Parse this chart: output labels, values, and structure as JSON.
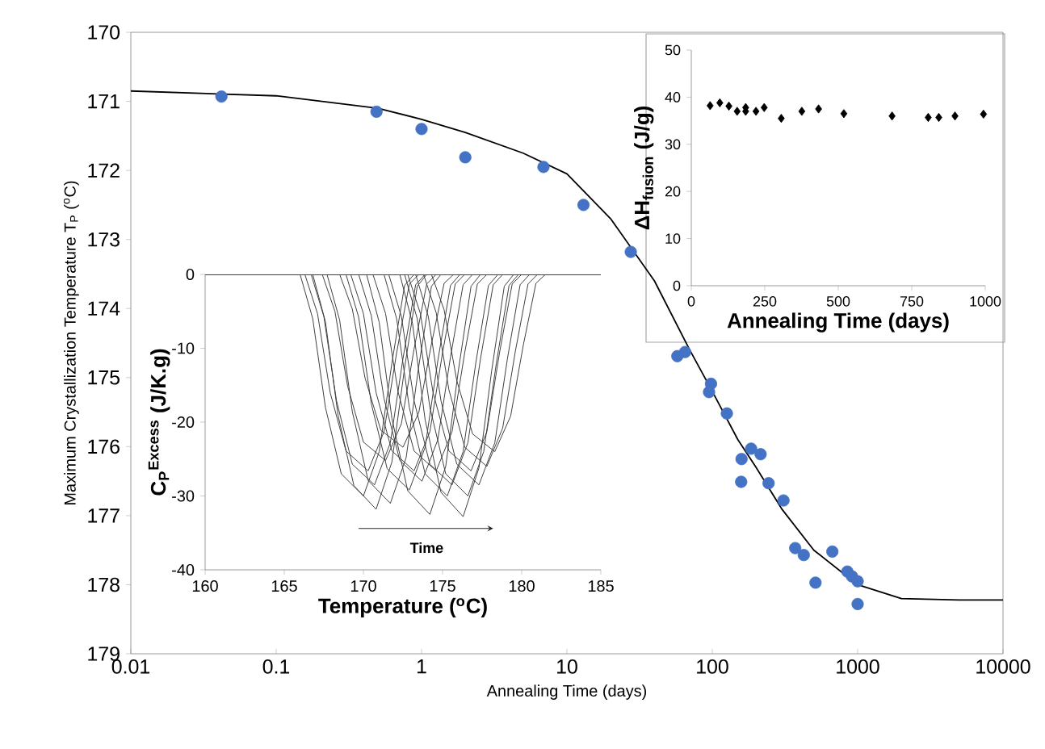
{
  "chart_data": [
    {
      "type": "scatter",
      "xlabel": "Annealing Time (days)",
      "ylabel": "Maximum Crystallization Temperature T$_{P}$ ($^{o}$C)",
      "log": "x",
      "xlim": [
        0.01,
        10000
      ],
      "ylim": [
        179,
        170
      ],
      "xticks": [
        0.01,
        0.1,
        1,
        10,
        100,
        1000,
        10000
      ],
      "yticks": [
        170,
        171,
        172,
        173,
        174,
        175,
        176,
        177,
        178,
        179
      ],
      "series": [
        {
          "type": "scatter",
          "marker": "circle",
          "color": "#4472c4",
          "x": [
            0.042,
            0.49,
            1.0,
            2.0,
            6.9,
            13,
            27.5,
            57.5,
            65,
            98,
            95,
            126,
            159,
            185,
            215,
            158,
            244,
            309,
            372,
            426,
            670,
            513,
            850,
            915,
            1000,
            1000
          ],
          "values": [
            170.93,
            171.15,
            171.4,
            171.81,
            171.95,
            172.5,
            173.18,
            174.69,
            174.63,
            175.09,
            175.21,
            175.52,
            176.18,
            176.03,
            176.11,
            176.51,
            176.53,
            176.78,
            177.47,
            177.57,
            177.52,
            177.97,
            177.81,
            177.88,
            177.95,
            178.28
          ]
        },
        {
          "type": "line",
          "color": "#000000",
          "x": [
            0.01,
            0.1,
            0.5,
            1,
            2,
            5,
            10,
            20,
            40,
            70,
            100,
            150,
            200,
            300,
            500,
            1000,
            2000,
            5000,
            10000
          ],
          "values": [
            170.85,
            170.92,
            171.1,
            171.26,
            171.45,
            171.75,
            172.05,
            172.7,
            173.6,
            174.6,
            175.2,
            175.9,
            176.3,
            176.9,
            177.5,
            178.0,
            178.2,
            178.22,
            178.22
          ]
        }
      ]
    },
    {
      "type": "line",
      "xlabel": "Temperature ($^{o}$C)",
      "ylabel": "C$_{P}$$^{Excess}$ (J/K.g)",
      "xlim": [
        160,
        185
      ],
      "ylim": [
        -40,
        0
      ],
      "xticks": [
        160,
        165,
        170,
        175,
        180,
        185
      ],
      "yticks": [
        -40,
        -30,
        -20,
        -10,
        0
      ],
      "annotations": [
        "Time"
      ],
      "series": [
        {
          "color": "#404040",
          "x": [
            160,
            166.8,
            167.6,
            168.4,
            169.4,
            170.8,
            171.8,
            172.6,
            173.4,
            174.0,
            185
          ],
          "values": [
            0,
            0,
            -6.4,
            -19.1,
            -28.6,
            -31.8,
            -25.4,
            -12.7,
            -1.6,
            0,
            0
          ]
        },
        {
          "color": "#404040",
          "x": [
            160,
            167.7,
            168.5,
            169.3,
            170.3,
            171.7,
            172.7,
            173.5,
            174.3,
            174.9,
            185
          ],
          "values": [
            0,
            0,
            -6.2,
            -18.6,
            -27.9,
            -31.0,
            -24.8,
            -12.4,
            -1.6,
            0,
            0
          ]
        },
        {
          "color": "#404040",
          "x": [
            160,
            166.0,
            166.8,
            167.6,
            168.6,
            170.0,
            171.0,
            171.8,
            172.6,
            173.2,
            185
          ],
          "values": [
            0,
            0,
            -6.0,
            -18.0,
            -27.0,
            -30.0,
            -24.0,
            -12.0,
            -1.5,
            0,
            0
          ]
        },
        {
          "color": "#404040",
          "x": [
            160,
            168.9,
            169.7,
            170.5,
            171.5,
            172.9,
            173.9,
            174.7,
            175.5,
            176.1,
            185
          ],
          "values": [
            0,
            0,
            -5.8,
            -17.5,
            -26.3,
            -29.2,
            -23.4,
            -11.7,
            -1.5,
            0,
            0
          ]
        },
        {
          "color": "#404040",
          "x": [
            160,
            170.2,
            171.0,
            171.8,
            172.8,
            174.2,
            175.2,
            176.0,
            176.8,
            177.4,
            185
          ],
          "values": [
            0,
            0,
            -6.5,
            -19.5,
            -29.3,
            -32.5,
            -26.0,
            -13.0,
            -1.6,
            0,
            0
          ]
        },
        {
          "color": "#404040",
          "x": [
            160,
            172.3,
            173.1,
            173.9,
            174.9,
            176.3,
            177.3,
            178.1,
            178.9,
            179.5,
            185
          ],
          "values": [
            0,
            0,
            -6.6,
            -19.7,
            -29.5,
            -32.8,
            -26.2,
            -13.1,
            -1.6,
            0,
            0
          ]
        },
        {
          "color": "#404040",
          "x": [
            160,
            166.3,
            167.1,
            167.9,
            168.9,
            170.3,
            171.3,
            172.1,
            172.9,
            173.5,
            185
          ],
          "values": [
            0,
            0,
            -5.3,
            -16.0,
            -23.9,
            -26.6,
            -21.3,
            -10.6,
            -1.3,
            0,
            0
          ]
        },
        {
          "color": "#404040",
          "x": [
            160,
            167.4,
            168.2,
            169.0,
            170.0,
            171.4,
            172.4,
            173.2,
            174.0,
            174.6,
            185
          ],
          "values": [
            0,
            0,
            -5.0,
            -15.1,
            -22.7,
            -25.2,
            -20.2,
            -10.1,
            -1.3,
            0,
            0
          ]
        },
        {
          "color": "#404040",
          "x": [
            160,
            169.2,
            170.0,
            170.8,
            171.8,
            173.2,
            174.2,
            175.0,
            175.8,
            176.4,
            185
          ],
          "values": [
            0,
            0,
            -5.3,
            -16.0,
            -23.9,
            -26.6,
            -21.3,
            -10.6,
            -1.3,
            0,
            0
          ]
        },
        {
          "color": "#404040",
          "x": [
            160,
            171.3,
            172.1,
            172.9,
            173.9,
            175.3,
            176.3,
            177.1,
            177.9,
            178.5,
            185
          ],
          "values": [
            0,
            0,
            -6.0,
            -18.0,
            -27.0,
            -30.0,
            -24.0,
            -12.0,
            -1.5,
            0,
            0
          ]
        },
        {
          "color": "#404040",
          "x": [
            160,
            173.3,
            174.1,
            174.9,
            175.9,
            177.3,
            178.3,
            179.1,
            179.9,
            180.5,
            185
          ],
          "values": [
            0,
            0,
            -5.7,
            -17.1,
            -25.7,
            -28.5,
            -22.8,
            -11.4,
            -1.4,
            0,
            0
          ]
        },
        {
          "color": "#404040",
          "x": [
            160,
            173.8,
            174.6,
            175.4,
            176.4,
            177.8,
            178.8,
            179.6,
            180.4,
            181.0,
            185
          ],
          "values": [
            0,
            0,
            -5.2,
            -15.6,
            -23.4,
            -26.0,
            -20.8,
            -10.4,
            -1.3,
            0,
            0
          ]
        },
        {
          "color": "#404040",
          "x": [
            160,
            172.8,
            173.6,
            174.4,
            175.4,
            176.8,
            177.8,
            178.6,
            179.4,
            180.0,
            185
          ],
          "values": [
            0,
            0,
            -5.3,
            -16.0,
            -23.9,
            -26.6,
            -21.3,
            -10.6,
            -1.3,
            0,
            0
          ]
        },
        {
          "color": "#404040",
          "x": [
            160,
            168.5,
            169.3,
            170.1,
            171.1,
            172.5,
            173.5,
            174.3,
            175.1,
            175.7,
            185
          ],
          "values": [
            0,
            0,
            -4.7,
            -14.0,
            -21.1,
            -23.4,
            -18.7,
            -9.4,
            -1.2,
            0,
            0
          ]
        },
        {
          "color": "#404040",
          "x": [
            160,
            170.6,
            171.4,
            172.2,
            173.2,
            174.6,
            175.6,
            176.4,
            177.2,
            177.8,
            185
          ],
          "values": [
            0,
            0,
            -5.3,
            -16.0,
            -23.9,
            -26.6,
            -21.3,
            -10.6,
            -1.3,
            0,
            0
          ]
        },
        {
          "color": "#404040",
          "x": [
            160,
            171.6,
            172.4,
            173.2,
            174.2,
            175.6,
            176.6,
            177.4,
            178.2,
            178.8,
            185
          ],
          "values": [
            0,
            0,
            -5.7,
            -17.1,
            -25.7,
            -28.5,
            -22.8,
            -11.4,
            -1.4,
            0,
            0
          ]
        },
        {
          "color": "#404040",
          "x": [
            160,
            169.7,
            170.5,
            171.3,
            172.3,
            173.7,
            174.7,
            175.5,
            176.3,
            176.9,
            185
          ],
          "values": [
            0,
            0,
            -5.6,
            -16.8,
            -25.2,
            -28.0,
            -22.4,
            -11.2,
            -1.4,
            0,
            0
          ]
        },
        {
          "color": "#404040",
          "x": [
            160,
            174.3,
            175.1,
            175.9,
            176.9,
            178.3,
            179.3,
            180.1,
            180.9,
            181.5,
            185
          ],
          "values": [
            0,
            0,
            -4.8,
            -14.4,
            -21.6,
            -24.0,
            -19.2,
            -9.6,
            -1.2,
            0,
            0
          ]
        },
        {
          "color": "#404040",
          "x": [
            160,
            166.7,
            167.5,
            168.3,
            169.3,
            170.7,
            171.7,
            172.5,
            173.3,
            173.9,
            185
          ],
          "values": [
            0,
            0,
            -5.7,
            -17.1,
            -25.7,
            -28.5,
            -22.8,
            -11.4,
            -1.4,
            0,
            0
          ]
        },
        {
          "color": "#404040",
          "x": [
            160,
            172.6,
            173.4,
            174.2,
            175.2,
            176.6,
            177.6,
            178.4,
            179.2,
            179.8,
            185
          ],
          "values": [
            0,
            0,
            -6.0,
            -18.0,
            -27.0,
            -30.0,
            -24.0,
            -12.0,
            -1.5,
            0,
            0
          ]
        }
      ]
    },
    {
      "type": "scatter",
      "xlabel": "Annealing Time (days)",
      "ylabel": "ΔH$_{fusion}$ (J/g)",
      "xlim": [
        0,
        1000
      ],
      "ylim": [
        0,
        50
      ],
      "xticks": [
        0,
        250,
        500,
        750,
        1000
      ],
      "yticks": [
        0,
        10,
        20,
        30,
        40,
        50
      ],
      "series": [
        {
          "marker": "diamond",
          "color": "#000000",
          "x": [
            64,
            97,
            128,
            156,
            185,
            185,
            220,
            248,
            306,
            376,
            433,
            519,
            683,
            806,
            842,
            897,
            994
          ],
          "values": [
            38.2,
            38.8,
            38.1,
            37.0,
            37.8,
            37.0,
            37.0,
            37.8,
            35.5,
            37.0,
            37.5,
            36.5,
            36.0,
            35.7,
            35.7,
            36.0,
            36.4
          ]
        }
      ]
    }
  ]
}
